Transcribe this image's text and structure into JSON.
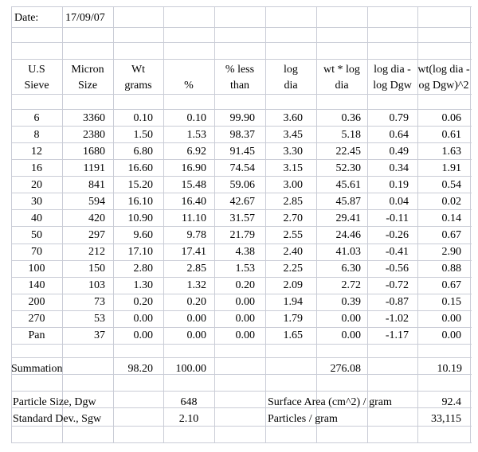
{
  "meta": {
    "date_label": "Date:",
    "date_value": "17/09/07"
  },
  "headers": {
    "row1": [
      "U.S",
      "Micron",
      "Wt",
      "",
      "% less",
      "log",
      "wt * log",
      "log dia -",
      "wt(log dia -"
    ],
    "row2": [
      "Sieve",
      "Size",
      "grams",
      "%",
      "than",
      "dia",
      "dia",
      "log Dgw",
      "og Dgw)^2"
    ]
  },
  "rows": [
    [
      "6",
      "3360",
      "0.10",
      "0.10",
      "99.90",
      "3.60",
      "0.36",
      "0.79",
      "0.06"
    ],
    [
      "8",
      "2380",
      "1.50",
      "1.53",
      "98.37",
      "3.45",
      "5.18",
      "0.64",
      "0.61"
    ],
    [
      "12",
      "1680",
      "6.80",
      "6.92",
      "91.45",
      "3.30",
      "22.45",
      "0.49",
      "1.63"
    ],
    [
      "16",
      "1191",
      "16.60",
      "16.90",
      "74.54",
      "3.15",
      "52.30",
      "0.34",
      "1.91"
    ],
    [
      "20",
      "841",
      "15.20",
      "15.48",
      "59.06",
      "3.00",
      "45.61",
      "0.19",
      "0.54"
    ],
    [
      "30",
      "594",
      "16.10",
      "16.40",
      "42.67",
      "2.85",
      "45.87",
      "0.04",
      "0.02"
    ],
    [
      "40",
      "420",
      "10.90",
      "11.10",
      "31.57",
      "2.70",
      "29.41",
      "-0.11",
      "0.14"
    ],
    [
      "50",
      "297",
      "9.60",
      "9.78",
      "21.79",
      "2.55",
      "24.46",
      "-0.26",
      "0.67"
    ],
    [
      "70",
      "212",
      "17.10",
      "17.41",
      "4.38",
      "2.40",
      "41.03",
      "-0.41",
      "2.90"
    ],
    [
      "100",
      "150",
      "2.80",
      "2.85",
      "1.53",
      "2.25",
      "6.30",
      "-0.56",
      "0.88"
    ],
    [
      "140",
      "103",
      "1.30",
      "1.32",
      "0.20",
      "2.09",
      "2.72",
      "-0.72",
      "0.67"
    ],
    [
      "200",
      "73",
      "0.20",
      "0.20",
      "0.00",
      "1.94",
      "0.39",
      "-0.87",
      "0.15"
    ],
    [
      "270",
      "53",
      "0.00",
      "0.00",
      "0.00",
      "1.79",
      "0.00",
      "-1.02",
      "0.00"
    ],
    [
      "Pan",
      "37",
      "0.00",
      "0.00",
      "0.00",
      "1.65",
      "0.00",
      "-1.17",
      "0.00"
    ]
  ],
  "summation": {
    "label": "Summation",
    "wt": "98.20",
    "pct": "100.00",
    "wtlog": "276.08",
    "sq": "10.19"
  },
  "results": {
    "particle_size_label": "Particle Size, Dgw",
    "particle_size_value": "648",
    "std_dev_label": "Standard Dev., Sgw",
    "std_dev_value": "2.10",
    "surface_area_label": "Surface Area (cm^2) / gram",
    "surface_area_value": "92.4",
    "particles_label": "Particles / gram",
    "particles_value": "33,115"
  },
  "colors": {
    "gridline": "#c9ccd6",
    "text": "#000000"
  }
}
